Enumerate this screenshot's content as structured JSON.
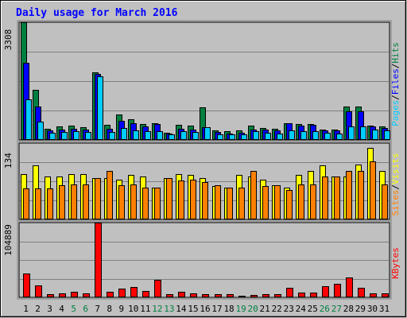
{
  "chart_data": [
    {
      "type": "bar",
      "title": "Daily usage for March 2016",
      "ylabel_parts": [
        {
          "text": "Pages",
          "color": "#00ccff"
        },
        {
          "text": "/",
          "color": "#000000"
        },
        {
          "text": "Files",
          "color": "#0000ff"
        },
        {
          "text": "/",
          "color": "#000000"
        },
        {
          "text": "Hits",
          "color": "#008040"
        }
      ],
      "ymax_label": "3308",
      "ylim": [
        0,
        3308
      ],
      "series": [
        {
          "name": "Hits",
          "color": "#008040",
          "values": [
            3308,
            1410,
            320,
            380,
            400,
            360,
            1900,
            420,
            720,
            580,
            440,
            460,
            200,
            420,
            400,
            920,
            260,
            240,
            260,
            400,
            340,
            320,
            480,
            440,
            440,
            300,
            300,
            940,
            940,
            400,
            380
          ]
        },
        {
          "name": "Files",
          "color": "#0000ff",
          "values": [
            2160,
            940,
            260,
            300,
            320,
            300,
            1860,
            320,
            540,
            470,
            380,
            440,
            180,
            320,
            300,
            360,
            220,
            180,
            200,
            300,
            280,
            260,
            470,
            400,
            420,
            260,
            270,
            800,
            800,
            380,
            340
          ]
        },
        {
          "name": "Pages",
          "color": "#00ccff",
          "values": [
            1150,
            510,
            200,
            230,
            250,
            220,
            1780,
            220,
            340,
            260,
            240,
            240,
            160,
            240,
            230,
            360,
            160,
            150,
            160,
            240,
            200,
            180,
            260,
            240,
            240,
            200,
            180,
            370,
            380,
            290,
            260
          ]
        }
      ]
    },
    {
      "type": "bar",
      "ylabel_parts": [
        {
          "text": "Sites",
          "color": "#ff8000"
        },
        {
          "text": "/",
          "color": "#000000"
        },
        {
          "text": "Visits",
          "color": "#ffff00"
        }
      ],
      "ymax_label": "134",
      "ylim": [
        0,
        134
      ],
      "series": [
        {
          "name": "Visits",
          "color": "#ffff00",
          "values": [
            80,
            95,
            75,
            75,
            80,
            80,
            72,
            72,
            70,
            78,
            75,
            56,
            72,
            80,
            78,
            72,
            58,
            56,
            78,
            75,
            70,
            60,
            56,
            78,
            85,
            95,
            75,
            75,
            96,
            126,
            85
          ]
        },
        {
          "name": "Sites",
          "color": "#ff8000",
          "values": [
            55,
            55,
            55,
            60,
            62,
            62,
            72,
            85,
            60,
            62,
            56,
            56,
            72,
            68,
            70,
            66,
            60,
            56,
            56,
            85,
            58,
            60,
            52,
            62,
            62,
            75,
            75,
            85,
            85,
            102,
            62
          ]
        }
      ]
    },
    {
      "type": "bar",
      "ylabel_parts": [
        {
          "text": "KBytes",
          "color": "#ff0000"
        }
      ],
      "ymax_label": "104889",
      "ylim": [
        0,
        104889
      ],
      "series": [
        {
          "name": "KBytes",
          "color": "#ff0000",
          "values": [
            33000,
            16500,
            5000,
            5500,
            7500,
            6000,
            104889,
            7500,
            12000,
            14500,
            9000,
            24000,
            4000,
            7500,
            5500,
            4000,
            4000,
            4000,
            2500,
            3800,
            5000,
            5000,
            13000,
            6500,
            7000,
            15500,
            18500,
            28000,
            13000,
            5500,
            5500
          ]
        }
      ]
    }
  ],
  "days": [
    "1",
    "2",
    "3",
    "4",
    "5",
    "6",
    "7",
    "8",
    "9",
    "10",
    "11",
    "12",
    "13",
    "14",
    "15",
    "16",
    "17",
    "18",
    "19",
    "20",
    "21",
    "22",
    "23",
    "24",
    "25",
    "26",
    "27",
    "28",
    "29",
    "30",
    "31"
  ],
  "weekend_days": [
    "5",
    "6",
    "12",
    "13",
    "19",
    "20",
    "26",
    "27"
  ],
  "weekend_color": "#008040"
}
